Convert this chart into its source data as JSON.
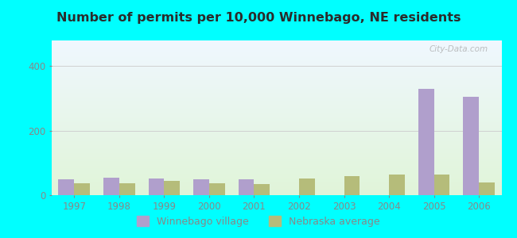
{
  "title": "Number of permits per 10,000 Winnebago, NE residents",
  "years": [
    1997,
    1998,
    1999,
    2000,
    2001,
    2002,
    2003,
    2004,
    2005,
    2006
  ],
  "winnebago": [
    50,
    55,
    52,
    50,
    50,
    0,
    0,
    0,
    330,
    305
  ],
  "nebraska": [
    38,
    38,
    45,
    38,
    35,
    52,
    60,
    63,
    63,
    40
  ],
  "winnebago_color": "#b09fcc",
  "nebraska_color": "#b5bc7a",
  "bg_outer": "#00ffff",
  "title_color": "#2b2b2b",
  "axis_color": "#888888",
  "grid_color": "#d0d0d0",
  "bar_width": 0.35,
  "ylim": [
    0,
    480
  ],
  "yticks": [
    0,
    200,
    400
  ],
  "watermark": "City-Data.com",
  "legend_winnebago": "Winnebago village",
  "legend_nebraska": "Nebraska average"
}
